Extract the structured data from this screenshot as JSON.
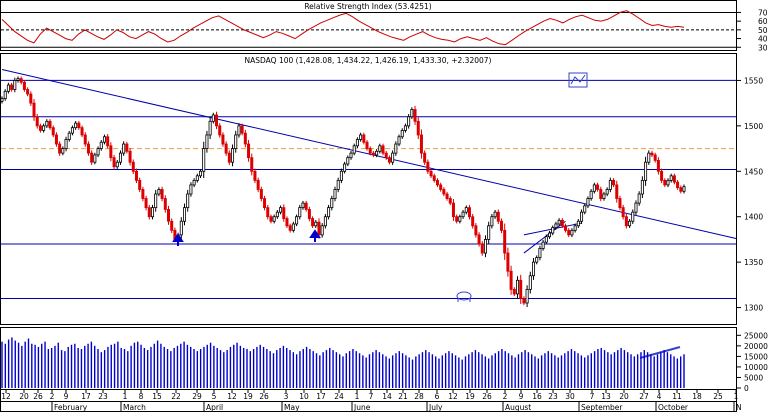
{
  "chart_data": [
    {
      "panel": "rsi",
      "type": "line",
      "title": "Relative Strength Index (53.4251)",
      "y_ticks": [
        30,
        40,
        50,
        60,
        70
      ],
      "ylim": [
        28,
        82
      ],
      "reference_lines": [
        70,
        50,
        30
      ],
      "color": "#cc0000",
      "values": [
        62,
        55,
        48,
        43,
        38,
        35,
        45,
        52,
        48,
        44,
        40,
        38,
        45,
        50,
        46,
        42,
        39,
        44,
        50,
        47,
        42,
        40,
        44,
        48,
        45,
        40,
        36,
        38,
        43,
        47,
        52,
        56,
        60,
        64,
        66,
        62,
        58,
        54,
        50,
        47,
        44,
        41,
        44,
        48,
        46,
        43,
        40,
        45,
        50,
        54,
        58,
        61,
        64,
        67,
        69,
        65,
        60,
        56,
        52,
        48,
        45,
        42,
        40,
        38,
        42,
        45,
        48,
        44,
        41,
        39,
        38,
        36,
        40,
        42,
        40,
        38,
        41,
        37,
        34,
        33,
        38,
        43,
        48,
        52,
        56,
        60,
        63,
        61,
        58,
        62,
        65,
        67,
        64,
        61,
        60,
        62,
        66,
        70,
        72,
        68,
        63,
        58,
        55,
        56,
        54,
        53,
        54,
        53
      ]
    },
    {
      "panel": "price",
      "type": "candlestick",
      "title": "NASDAQ 100 (1,428.08, 1,434.22, 1,426.19, 1,433.30, +2.32007)",
      "y_ticks": [
        1300,
        1350,
        1400,
        1450,
        1500,
        1550
      ],
      "ylim": [
        1283,
        1578
      ],
      "horizontal_lines": [
        1550,
        1510,
        1452,
        1370,
        1310
      ],
      "dashed_line": 1475,
      "trendlines": [
        {
          "from": [
            0,
            1562
          ],
          "to": [
            212,
            1390
          ]
        },
        {
          "from": [
            163,
            1380
          ],
          "to": [
            181,
            1393
          ]
        },
        {
          "from": [
            163,
            1360
          ],
          "to": [
            176,
            1395
          ]
        }
      ],
      "up_color": "#000000",
      "down_color": "#dd0000",
      "closes": [
        1530,
        1538,
        1545,
        1540,
        1550,
        1552,
        1548,
        1540,
        1535,
        1525,
        1510,
        1500,
        1495,
        1500,
        1505,
        1498,
        1490,
        1480,
        1470,
        1475,
        1485,
        1492,
        1498,
        1503,
        1498,
        1490,
        1480,
        1470,
        1460,
        1468,
        1475,
        1482,
        1488,
        1478,
        1465,
        1455,
        1460,
        1470,
        1480,
        1472,
        1460,
        1450,
        1440,
        1430,
        1420,
        1410,
        1400,
        1410,
        1425,
        1430,
        1420,
        1408,
        1395,
        1385,
        1375,
        1380,
        1395,
        1410,
        1425,
        1435,
        1440,
        1445,
        1450,
        1475,
        1490,
        1505,
        1512,
        1500,
        1490,
        1480,
        1470,
        1460,
        1475,
        1490,
        1500,
        1492,
        1480,
        1465,
        1450,
        1440,
        1430,
        1420,
        1410,
        1400,
        1395,
        1400,
        1405,
        1410,
        1398,
        1390,
        1385,
        1392,
        1400,
        1410,
        1415,
        1408,
        1398,
        1390,
        1394,
        1380,
        1390,
        1400,
        1410,
        1420,
        1430,
        1440,
        1450,
        1458,
        1465,
        1470,
        1478,
        1485,
        1490,
        1482,
        1475,
        1470,
        1468,
        1472,
        1478,
        1470,
        1465,
        1460,
        1470,
        1480,
        1488,
        1495,
        1500,
        1510,
        1518,
        1505,
        1490,
        1470,
        1460,
        1450,
        1445,
        1440,
        1435,
        1430,
        1425,
        1420,
        1415,
        1400,
        1395,
        1400,
        1405,
        1410,
        1400,
        1390,
        1380,
        1370,
        1360,
        1375,
        1390,
        1400,
        1405,
        1395,
        1385,
        1360,
        1340,
        1320,
        1315,
        1330,
        1310,
        1305,
        1320,
        1335,
        1350,
        1355,
        1365,
        1372,
        1378,
        1382,
        1388,
        1392,
        1396,
        1390,
        1385,
        1380,
        1385,
        1390,
        1395,
        1405,
        1412,
        1420,
        1428,
        1435,
        1430,
        1420,
        1425,
        1430,
        1440,
        1435,
        1420,
        1410,
        1400,
        1390,
        1395,
        1405,
        1415,
        1425,
        1440,
        1460,
        1470,
        1468,
        1462,
        1450,
        1440,
        1435,
        1440,
        1445,
        1438,
        1432,
        1428,
        1433
      ]
    },
    {
      "panel": "volume",
      "type": "bar",
      "y_ticks": [
        "25000",
        "20000",
        "15000",
        "10000",
        "5000",
        "0"
      ],
      "ylim": [
        0,
        28000
      ],
      "color": "#0000cc",
      "values": [
        22000,
        21000,
        23000,
        24000,
        22500,
        21500,
        20000,
        22000,
        23500,
        21000,
        20500,
        19500,
        21000,
        22000,
        18500,
        19000,
        20000,
        21500,
        18000,
        17500,
        19500,
        20500,
        21000,
        19000,
        18500,
        20000,
        21000,
        22000,
        20000,
        18500,
        17000,
        18000,
        19500,
        20500,
        21000,
        22000,
        19000,
        18500,
        17500,
        20000,
        21500,
        22000,
        20500,
        19000,
        18000,
        19500,
        21000,
        22500,
        21000,
        19500,
        18500,
        17500,
        19000,
        20000,
        21000,
        22000,
        20500,
        19500,
        18500,
        17500,
        18500,
        19500,
        20500,
        21500,
        20000,
        19000,
        18000,
        17000,
        18000,
        19500,
        20500,
        21500,
        20000,
        19000,
        18500,
        17500,
        18500,
        19500,
        20500,
        19500,
        18500,
        17500,
        16500,
        18000,
        19000,
        20000,
        19000,
        18000,
        17000,
        16000,
        17500,
        18500,
        19500,
        18500,
        17500,
        16500,
        15500,
        17000,
        18000,
        19000,
        18000,
        17000,
        16000,
        15000,
        16500,
        17500,
        18500,
        17500,
        16500,
        15500,
        14500,
        16000,
        17000,
        18000,
        17000,
        16000,
        15000,
        14000,
        15500,
        16500,
        17500,
        16500,
        15500,
        14500,
        13500,
        15000,
        16000,
        17000,
        18000,
        17000,
        16000,
        15000,
        14000,
        15500,
        16500,
        17500,
        16500,
        15500,
        14500,
        13500,
        15000,
        16000,
        17000,
        18000,
        17000,
        16000,
        15000,
        14000,
        15500,
        16500,
        17500,
        18500,
        17500,
        16500,
        15500,
        14500,
        16000,
        17000,
        18000,
        17000,
        16000,
        15000,
        14000,
        15500,
        16500,
        17500,
        16500,
        15500,
        14500,
        15500,
        16500,
        17500,
        18500,
        17500,
        16500,
        15500,
        14500,
        15500,
        16500,
        17500,
        18500,
        19000,
        18000,
        17000,
        16000,
        17000,
        18000,
        19000,
        18000,
        17000,
        16000,
        15000,
        16000,
        17000,
        18000,
        17000,
        16000,
        15000,
        16000,
        17000,
        18000,
        17000,
        16000,
        15000,
        14000,
        15000,
        16000
      ]
    },
    {
      "panel": "x_axis",
      "type": "axis",
      "day_labels": [
        "12",
        "20",
        "26",
        "2",
        "9",
        "17",
        "23",
        "1",
        "8",
        "15",
        "22",
        "29",
        "5",
        "12",
        "19",
        "26",
        "3",
        "10",
        "17",
        "24",
        "1",
        "7",
        "14",
        "21",
        "28",
        "6",
        "12",
        "19",
        "26",
        "2",
        "9",
        "16",
        "23",
        "30",
        "7",
        "13",
        "20",
        "27",
        "4",
        "11",
        "18",
        "25",
        "1"
      ],
      "month_labels": [
        "February",
        "March",
        "April",
        "May",
        "June",
        "July",
        "August",
        "September",
        "October",
        "N"
      ]
    }
  ]
}
